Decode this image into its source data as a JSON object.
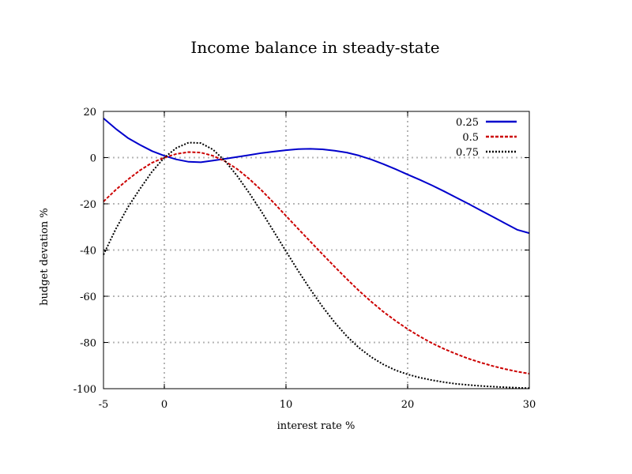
{
  "chart_data": {
    "type": "line",
    "title": "Income balance in steady-state",
    "xlabel": "interest rate %",
    "ylabel": "budget devation %",
    "xlim": [
      -5,
      30
    ],
    "ylim": [
      -100,
      20
    ],
    "xticks": [
      -5,
      0,
      10,
      20,
      30
    ],
    "yticks": [
      20,
      0,
      -20,
      -40,
      -60,
      -80,
      -100
    ],
    "xtick_labels": [
      "-5",
      "0",
      "10",
      "20",
      "30"
    ],
    "ytick_labels": [
      "20",
      "0",
      "-20",
      "-40",
      "-60",
      "-80",
      "-100"
    ],
    "grid": true,
    "legend_position": "top-right",
    "series": [
      {
        "name": "0.25",
        "color": "#0000cc",
        "style": "solid",
        "x": [
          -5,
          -4,
          -3,
          -2,
          -1,
          0,
          1,
          2,
          3,
          4,
          5,
          6,
          7,
          8,
          9,
          10,
          11,
          12,
          13,
          14,
          15,
          16,
          17,
          18,
          19,
          20,
          21,
          22,
          23,
          24,
          25,
          26,
          27,
          28,
          29,
          30
        ],
        "y": [
          17,
          12.5,
          8.5,
          5.5,
          2.8,
          0.8,
          -0.8,
          -1.8,
          -2,
          -1.3,
          -0.5,
          0.3,
          1.1,
          2,
          2.6,
          3.2,
          3.7,
          3.8,
          3.6,
          3,
          2.2,
          0.9,
          -0.8,
          -2.8,
          -5,
          -7.3,
          -9.6,
          -12,
          -14.6,
          -17.3,
          -20,
          -22.8,
          -25.6,
          -28.4,
          -31.2,
          -32.7
        ]
      },
      {
        "name": "0.5",
        "color": "#cc0000",
        "style": "dashed",
        "x": [
          -5,
          -4,
          -3,
          -2,
          -1,
          0,
          1,
          2,
          3,
          4,
          5,
          6,
          7,
          8,
          9,
          10,
          11,
          12,
          13,
          14,
          15,
          16,
          17,
          18,
          19,
          20,
          21,
          22,
          23,
          24,
          25,
          26,
          27,
          28,
          29,
          30
        ],
        "y": [
          -19,
          -14,
          -9.5,
          -5.5,
          -2.2,
          0,
          1.6,
          2.4,
          2.2,
          0.8,
          -1.6,
          -5,
          -9.3,
          -14.2,
          -19.6,
          -25.2,
          -30.8,
          -36.3,
          -41.8,
          -47.2,
          -52.5,
          -57.6,
          -62.3,
          -66.7,
          -70.6,
          -74.2,
          -77.4,
          -80.3,
          -82.8,
          -85,
          -87,
          -88.7,
          -90.2,
          -91.5,
          -92.6,
          -93.5
        ]
      },
      {
        "name": "0.75",
        "color": "#000000",
        "style": "dotted",
        "x": [
          -5,
          -4,
          -3,
          -2,
          -1,
          0,
          1,
          2,
          3,
          4,
          5,
          6,
          7,
          8,
          9,
          10,
          11,
          12,
          13,
          14,
          15,
          16,
          17,
          18,
          19,
          20,
          21,
          22,
          23,
          24,
          25,
          26,
          27,
          28,
          29,
          30
        ],
        "y": [
          -42,
          -31,
          -21.5,
          -13.5,
          -6,
          0,
          4.2,
          6.5,
          6.3,
          3.5,
          -1.5,
          -8,
          -15.5,
          -23.5,
          -32,
          -40.5,
          -49,
          -57,
          -64.5,
          -71.3,
          -77.3,
          -82.3,
          -86.3,
          -89.5,
          -92,
          -93.8,
          -95.2,
          -96.3,
          -97.2,
          -97.9,
          -98.4,
          -98.8,
          -99.1,
          -99.4,
          -99.6,
          -99.8
        ]
      }
    ]
  }
}
